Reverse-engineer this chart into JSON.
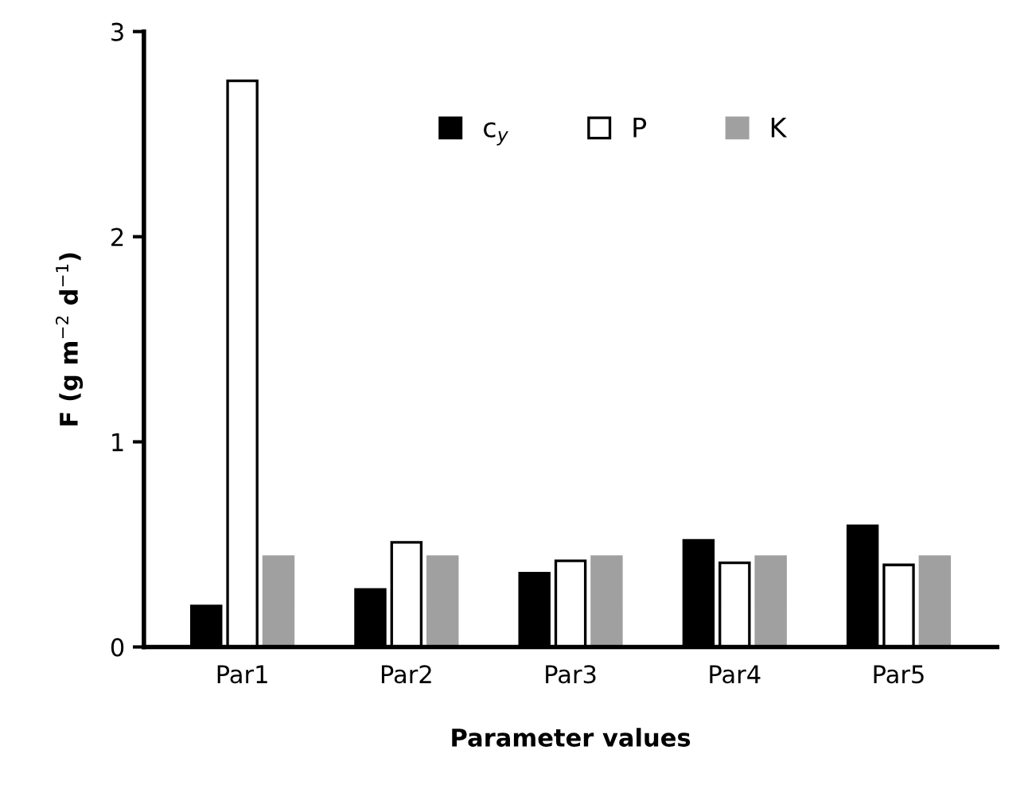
{
  "chart_data": {
    "type": "bar",
    "xlabel": "Parameter values",
    "ylabel": "F (g m$^{−2}$ d$^{−1}$)",
    "categories": [
      "Par1",
      "Par2",
      "Par3",
      "Par4",
      "Par5"
    ],
    "series": [
      {
        "name": "c$_{y}$",
        "color": "#000000",
        "values": [
          0.2,
          0.28,
          0.36,
          0.52,
          0.59
        ]
      },
      {
        "name": "P",
        "color": "#ffffff",
        "values": [
          2.76,
          0.51,
          0.42,
          0.41,
          0.4
        ]
      },
      {
        "name": "K",
        "color": "#a0a0a0",
        "values": [
          0.44,
          0.44,
          0.44,
          0.44,
          0.44
        ]
      }
    ],
    "ylim": [
      0,
      3
    ],
    "yticks": [
      0,
      1,
      2,
      3
    ],
    "grid": false,
    "legend": "top"
  }
}
